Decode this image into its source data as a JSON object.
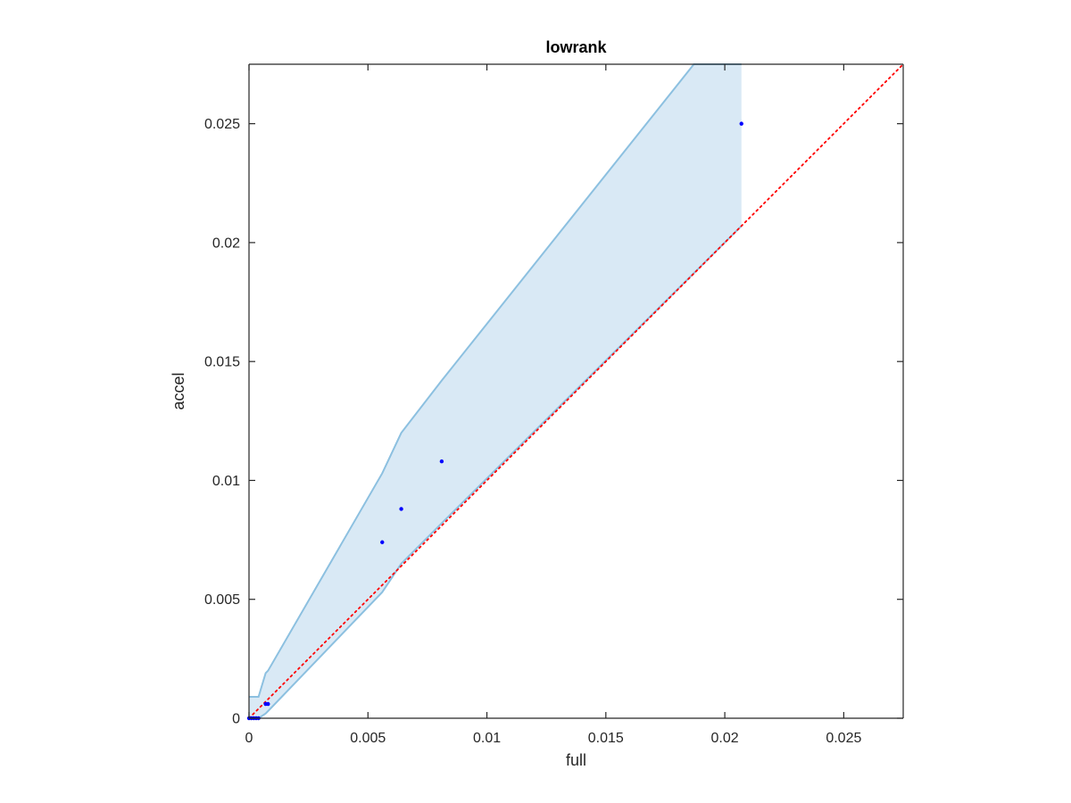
{
  "chart_data": {
    "type": "scatter",
    "title": "lowrank",
    "xlabel": "full",
    "ylabel": "accel",
    "xlim": [
      0,
      0.0275
    ],
    "ylim": [
      0,
      0.0275
    ],
    "grid": false,
    "box": true,
    "x_ticks": [
      {
        "value": 0,
        "label": "0"
      },
      {
        "value": 0.005,
        "label": "0.005"
      },
      {
        "value": 0.01,
        "label": "0.01"
      },
      {
        "value": 0.015,
        "label": "0.015"
      },
      {
        "value": 0.02,
        "label": "0.02"
      },
      {
        "value": 0.025,
        "label": "0.025"
      }
    ],
    "y_ticks": [
      {
        "value": 0,
        "label": "0"
      },
      {
        "value": 0.005,
        "label": "0.005"
      },
      {
        "value": 0.01,
        "label": "0.01"
      },
      {
        "value": 0.015,
        "label": "0.015"
      },
      {
        "value": 0.02,
        "label": "0.02"
      },
      {
        "value": 0.025,
        "label": "0.025"
      }
    ],
    "points": {
      "color": "#0000ff",
      "x": [
        0.0,
        0.0001,
        0.0002,
        0.0003,
        0.0004,
        0.0007,
        0.0008,
        0.0056,
        0.0064,
        0.0081,
        0.0207
      ],
      "y": [
        0.0,
        0.0,
        0.0,
        0.0,
        0.0,
        0.0006,
        0.0006,
        0.0074,
        0.0088,
        0.0108,
        0.025
      ]
    },
    "band": {
      "fill": "#d9e9f5",
      "edge": "#8cc0e0",
      "upper": {
        "x": [
          0.0,
          0.0004,
          0.0007,
          0.0008,
          0.0056,
          0.0064,
          0.0081,
          0.0187,
          0.0207
        ],
        "y": [
          0.0009,
          0.0009,
          0.0019,
          0.002,
          0.0103,
          0.012,
          0.0142,
          0.0275,
          0.0275
        ]
      },
      "lower": {
        "x": [
          0.0,
          0.0004,
          0.0007,
          0.0008,
          0.0056,
          0.0064,
          0.0081,
          0.0207
        ],
        "y": [
          0.0,
          0.0,
          0.0002,
          0.0003,
          0.0053,
          0.0065,
          0.0082,
          0.0207
        ]
      }
    },
    "reference_line": {
      "style": "dotted",
      "color": "#ff0000",
      "x": [
        0,
        0.0275
      ],
      "y": [
        0,
        0.0275
      ]
    }
  }
}
